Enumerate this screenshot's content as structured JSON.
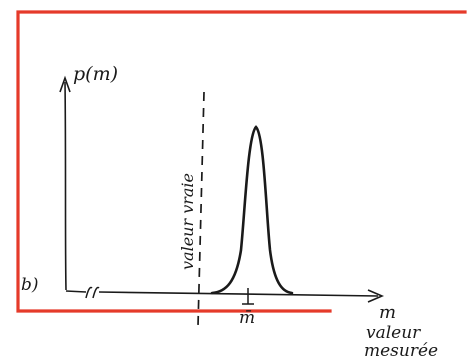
{
  "figure": {
    "panel_label": "b)",
    "y_axis_label": "p(m)",
    "x_axis_label": "m",
    "x_axis_caption_line1": "valeur",
    "x_axis_caption_line2": "mesurée",
    "true_value_label": "valeur vraie",
    "mean_marker_label": "m̄",
    "axis_break_symbol": "≈",
    "frame_color": "#e53a2a",
    "ink_color": "#1a1a1a"
  }
}
